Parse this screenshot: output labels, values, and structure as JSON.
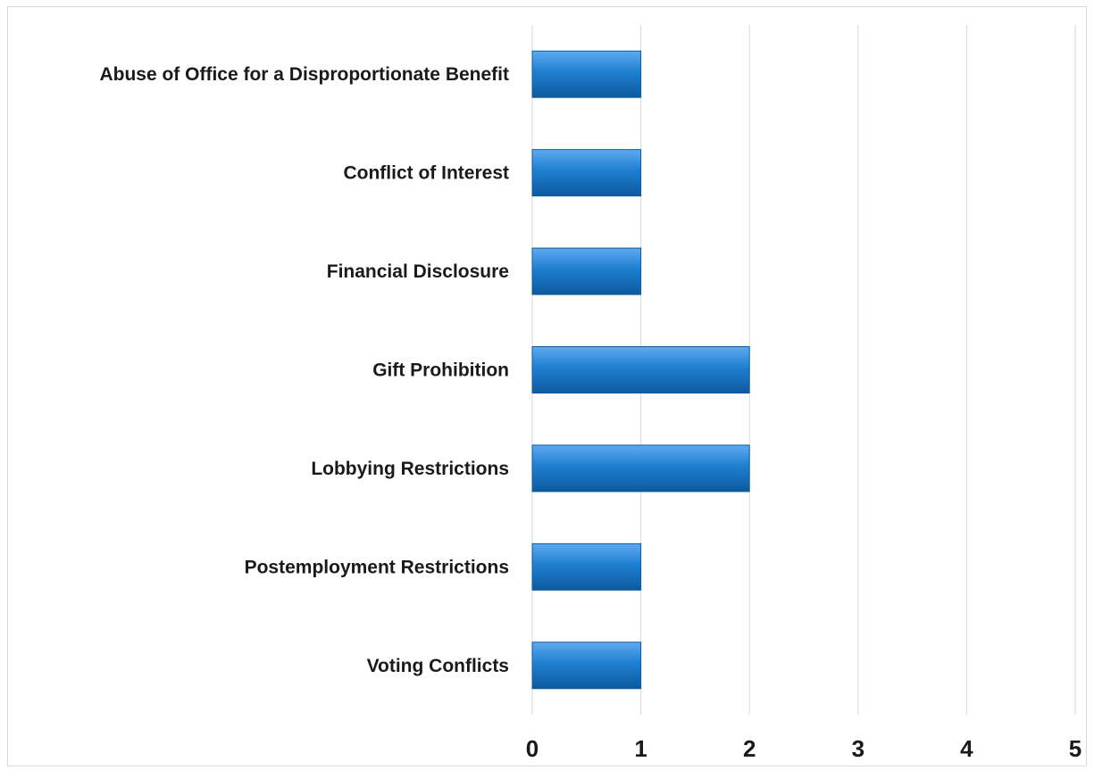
{
  "chart_data": {
    "type": "bar",
    "orientation": "horizontal",
    "categories": [
      "Abuse of Office for a Disproportionate Benefit",
      "Conflict of Interest",
      "Financial Disclosure",
      "Gift Prohibition",
      "Lobbying Restrictions",
      "Postemployment Restrictions",
      "Voting Conflicts"
    ],
    "values": [
      1,
      1,
      1,
      2,
      2,
      1,
      1
    ],
    "xlim": [
      0,
      5
    ],
    "x_ticks": [
      "0",
      "1",
      "2",
      "3",
      "4",
      "5"
    ],
    "title": "",
    "xlabel": "",
    "ylabel": "",
    "grid": "vertical",
    "legend": "none",
    "bar_color": "#1f7fd0",
    "bar_color_dark": "#0d5a9e",
    "bar_color_light": "#5eaaf0"
  }
}
